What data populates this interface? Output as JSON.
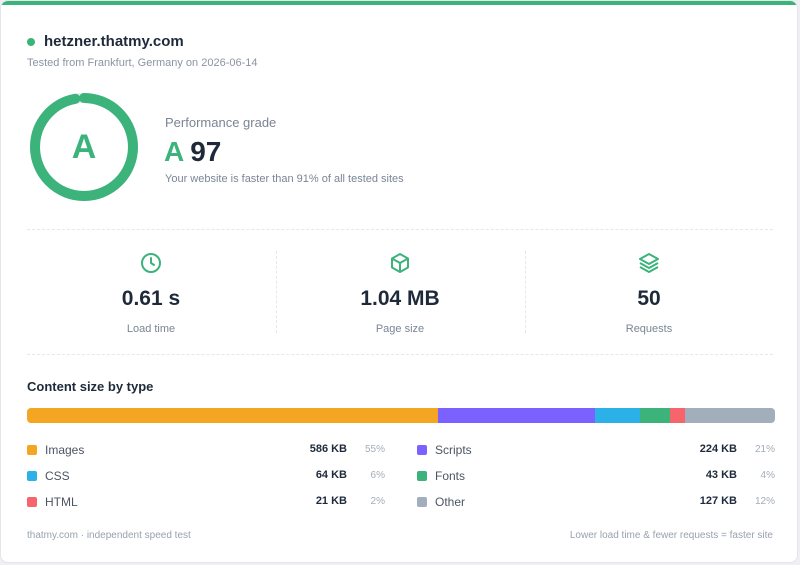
{
  "site": {
    "domain": "hetzner.thatmy.com",
    "tested_line": "Tested from Frankfurt, Germany on 2026-06-14"
  },
  "grade": {
    "letter": "A",
    "label": "Performance grade",
    "score": "97",
    "score_fraction": 0.97,
    "comparison": "Your website is faster than 91% of all tested sites",
    "accent_color": "#3bb37a"
  },
  "metrics": [
    {
      "icon": "clock-icon",
      "value": "0.61 s",
      "label": "Load time"
    },
    {
      "icon": "package-icon",
      "value": "1.04 MB",
      "label": "Page size"
    },
    {
      "icon": "layers-icon",
      "value": "50",
      "label": "Requests"
    }
  ],
  "content": {
    "title": "Content size by type",
    "types": [
      {
        "name": "Images",
        "size": "586 KB",
        "pct": "55%",
        "share": 55,
        "color": "#f4a623"
      },
      {
        "name": "Scripts",
        "size": "224 KB",
        "pct": "21%",
        "share": 21,
        "color": "#7b61ff"
      },
      {
        "name": "CSS",
        "size": "64 KB",
        "pct": "6%",
        "share": 6,
        "color": "#2bb0e8"
      },
      {
        "name": "Fonts",
        "size": "43 KB",
        "pct": "4%",
        "share": 4,
        "color": "#3bb37a"
      },
      {
        "name": "HTML",
        "size": "21 KB",
        "pct": "2%",
        "share": 2,
        "color": "#f5656b"
      },
      {
        "name": "Other",
        "size": "127 KB",
        "pct": "12%",
        "share": 12,
        "color": "#a3aebd"
      }
    ]
  },
  "footer": {
    "left": "thatmy.com · independent speed test",
    "right": "Lower load time & fewer requests = faster site"
  }
}
